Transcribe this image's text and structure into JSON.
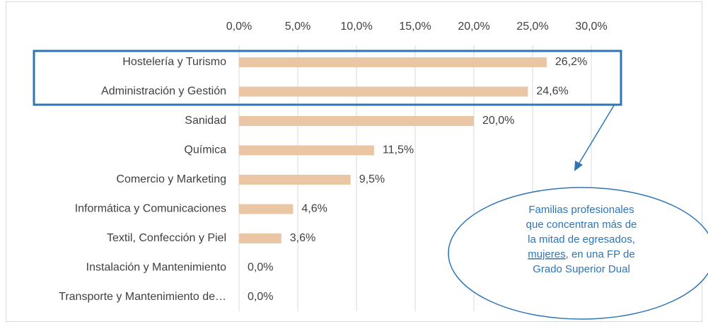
{
  "chart_data": {
    "type": "bar",
    "orientation": "horizontal",
    "categories": [
      "Hostelería y Turismo",
      "Administración y Gestión",
      "Sanidad",
      "Química",
      "Comercio y Marketing",
      "Informática y Comunicaciones",
      "Textil, Confección y Piel",
      "Instalación y Mantenimiento",
      "Transporte y Mantenimiento de…"
    ],
    "values": [
      26.2,
      24.6,
      20.0,
      11.5,
      9.5,
      4.6,
      3.6,
      0.0,
      0.0
    ],
    "value_labels": [
      "26,2%",
      "24,6%",
      "20,0%",
      "11,5%",
      "9,5%",
      "4,6%",
      "3,6%",
      "0,0%",
      "0,0%"
    ],
    "color": "#eac6a4",
    "xlim": [
      0,
      30
    ],
    "xticks": [
      {
        "value": 0,
        "label": "0,0%"
      },
      {
        "value": 5,
        "label": "5,0%"
      },
      {
        "value": 10,
        "label": "10,0%"
      },
      {
        "value": 15,
        "label": "15,0%"
      },
      {
        "value": 20,
        "label": "20,0%"
      },
      {
        "value": 25,
        "label": "25,0%"
      },
      {
        "value": 30,
        "label": "30,0%"
      }
    ],
    "grid": true,
    "annotation": [
      "Familias profesionales",
      "que concentran más de",
      "la mitad de egresados,",
      "mujeres",
      ", en una FP de",
      "Grado Superior Dual"
    ]
  }
}
